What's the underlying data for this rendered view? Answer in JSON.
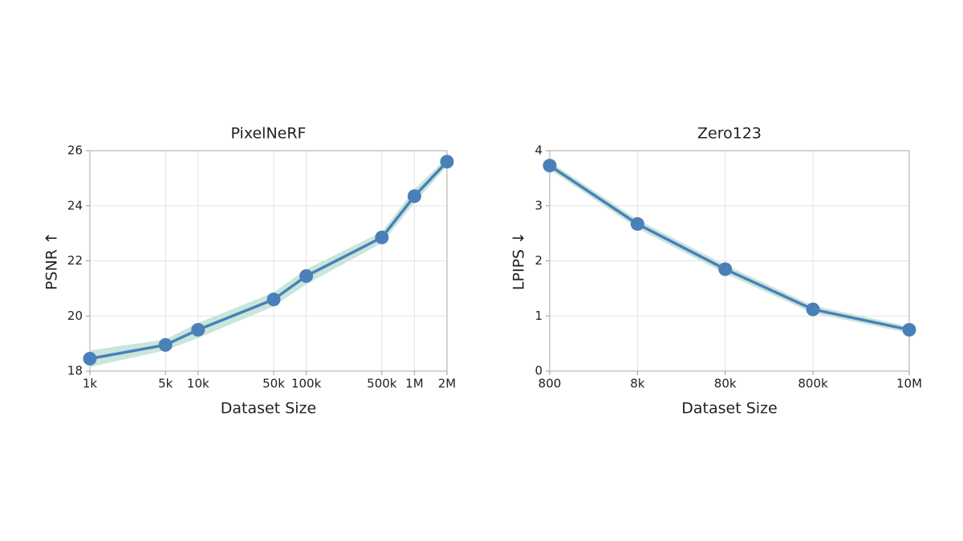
{
  "chart_data": [
    {
      "type": "line",
      "title": "PixelNeRF",
      "xlabel": "Dataset Size",
      "ylabel": "PSNR ↑",
      "xscale": "log",
      "grid": true,
      "x": [
        1000,
        5000,
        10000,
        50000,
        100000,
        500000,
        1000000,
        2000000
      ],
      "series": [
        {
          "color": "#4a80b8",
          "band_color": "#c9e5dc",
          "values": [
            18.45,
            18.95,
            19.5,
            20.6,
            21.45,
            22.85,
            24.35,
            25.6
          ],
          "lower": [
            18.15,
            18.75,
            19.2,
            20.35,
            21.15,
            22.65,
            24.1,
            25.45
          ],
          "upper": [
            18.75,
            19.15,
            19.75,
            20.85,
            21.7,
            23.05,
            24.6,
            25.75
          ]
        }
      ],
      "xlim": [
        1000,
        2000000
      ],
      "xticks": [
        {
          "value": 1000,
          "label": "1k"
        },
        {
          "value": 5000,
          "label": "5k"
        },
        {
          "value": 10000,
          "label": "10k"
        },
        {
          "value": 50000,
          "label": "50k"
        },
        {
          "value": 100000,
          "label": "100k"
        },
        {
          "value": 500000,
          "label": "500k"
        },
        {
          "value": 1000000,
          "label": "1M"
        },
        {
          "value": 2000000,
          "label": "2M"
        }
      ],
      "ylim": [
        18,
        26
      ],
      "yticks": [
        18,
        20,
        22,
        24,
        26
      ]
    },
    {
      "type": "line",
      "title": "Zero123",
      "xlabel": "Dataset Size",
      "ylabel": "LPIPS ↓",
      "xscale": "log",
      "grid": true,
      "x": [
        800,
        8000,
        80000,
        800000,
        10000000
      ],
      "series": [
        {
          "color": "#4a80b8",
          "band_color": "#c9e5dc",
          "values": [
            3.73,
            2.67,
            1.85,
            1.12,
            0.75
          ],
          "lower": [
            3.66,
            2.59,
            1.77,
            1.05,
            0.69
          ],
          "upper": [
            3.8,
            2.75,
            1.93,
            1.19,
            0.81
          ]
        }
      ],
      "xlim": [
        800,
        10000000
      ],
      "xticks": [
        {
          "value": 800,
          "label": "800"
        },
        {
          "value": 8000,
          "label": "8k"
        },
        {
          "value": 80000,
          "label": "80k"
        },
        {
          "value": 800000,
          "label": "800k"
        },
        {
          "value": 10000000,
          "label": "10M"
        }
      ],
      "ylim": [
        0,
        4
      ],
      "yticks": [
        0,
        1,
        2,
        3,
        4
      ]
    }
  ]
}
